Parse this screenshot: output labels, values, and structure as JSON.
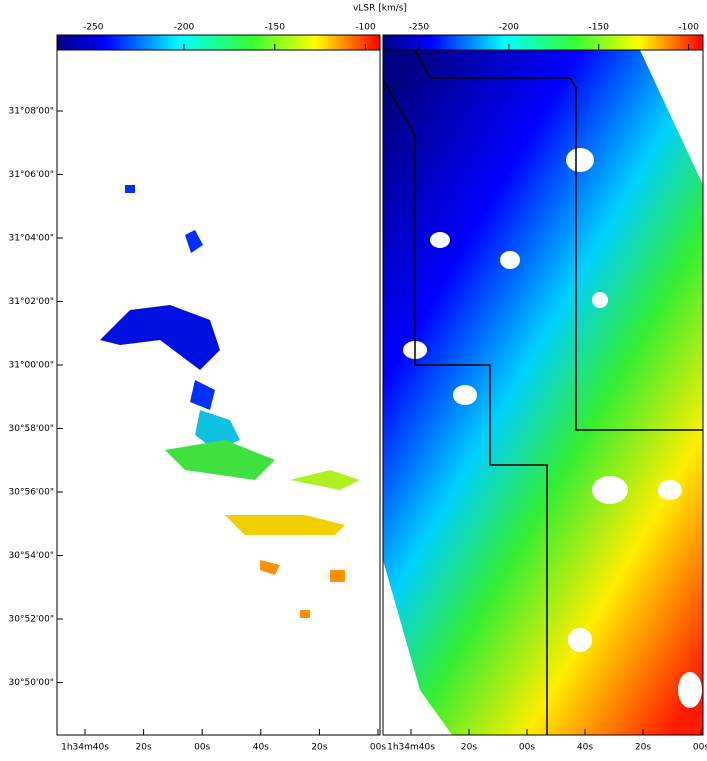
{
  "chart_data": [
    {
      "type": "image",
      "colorbar_label": "vLSR [km/s]",
      "clim": [
        -270,
        -92
      ],
      "cticks": [
        -250,
        -200,
        -150,
        -100
      ],
      "yticklabels": [
        "31°08'00\"",
        "31°06'00\"",
        "31°04'00\"",
        "31°02'00\"",
        "31°00'00\"",
        "30°58'00\"",
        "30°56'00\"",
        "30°54'00\"",
        "30°52'00\"",
        "30°50'00\""
      ],
      "xticklabels": [
        "1h34m40s",
        "20s",
        "00s",
        "40s",
        "20s",
        "00s"
      ]
    },
    {
      "type": "image",
      "clim": [
        -270,
        -92
      ],
      "cticks": [
        -250,
        -200,
        -150,
        -100
      ],
      "xticklabels": [
        "1h34m40s",
        "20s",
        "00s",
        "40s",
        "20s",
        "00s"
      ]
    }
  ]
}
